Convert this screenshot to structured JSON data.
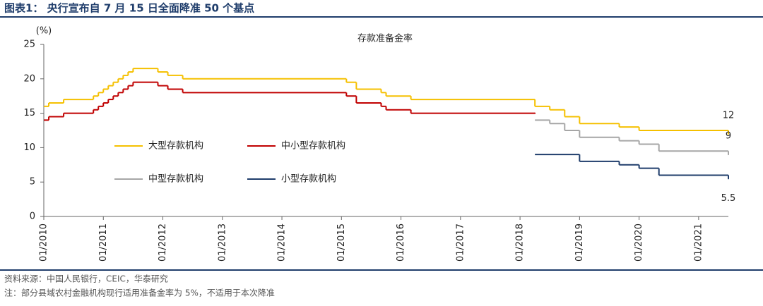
{
  "header": {
    "title": "图表1：  央行宣布自 7 月 15 日全面降准 50 个基点"
  },
  "chart_data": {
    "type": "step-line",
    "title": "存款准备金率",
    "y_label": "(%)",
    "xlim": [
      "01/2010",
      "07/2021"
    ],
    "xticks": [
      "01/2010",
      "01/2011",
      "01/2012",
      "01/2013",
      "01/2014",
      "01/2015",
      "01/2016",
      "01/2017",
      "01/2018",
      "01/2019",
      "01/2020",
      "01/2021"
    ],
    "ylim": [
      0,
      25
    ],
    "yticks": [
      0,
      5,
      10,
      15,
      20,
      25
    ],
    "grid": false,
    "legend": "center-left",
    "series": [
      {
        "name": "大型存款机构",
        "color": "#f5c000",
        "label_last": true,
        "x": [
          "01/2010",
          "02/2010",
          "05/2010",
          "11/2010",
          "12/2010",
          "01/2011",
          "02/2011",
          "03/2011",
          "04/2011",
          "05/2011",
          "06/2011",
          "07/2011",
          "12/2011",
          "02/2012",
          "05/2012",
          "02/2015",
          "04/2015",
          "09/2015",
          "10/2015",
          "03/2016",
          "04/2018",
          "07/2018",
          "10/2018",
          "01/2019",
          "09/2019",
          "01/2020",
          "07/2021"
        ],
        "values": [
          16,
          16.5,
          17,
          17.5,
          18,
          18.5,
          19,
          19.5,
          20,
          20.5,
          21,
          21.5,
          21,
          20.5,
          20,
          19.5,
          18.5,
          18,
          17.5,
          17,
          16,
          15.5,
          14.5,
          13.5,
          13,
          12.5,
          12
        ]
      },
      {
        "name": "中小型存款机构",
        "color": "#c00000",
        "label_last": false,
        "x": [
          "01/2010",
          "02/2010",
          "05/2010",
          "11/2010",
          "12/2010",
          "01/2011",
          "02/2011",
          "03/2011",
          "04/2011",
          "05/2011",
          "06/2011",
          "07/2011",
          "12/2011",
          "02/2012",
          "05/2012",
          "02/2015",
          "04/2015",
          "09/2015",
          "10/2015",
          "03/2016",
          "04/2018"
        ],
        "values": [
          14,
          14.5,
          15,
          15.5,
          16,
          16.5,
          17,
          17.5,
          18,
          18.5,
          19,
          19.5,
          19,
          18.5,
          18,
          17.5,
          16.5,
          16,
          15.5,
          15,
          15
        ]
      },
      {
        "name": "中型存款机构",
        "color": "#a6a6a6",
        "label_last": true,
        "x": [
          "04/2018",
          "07/2018",
          "10/2018",
          "01/2019",
          "09/2019",
          "01/2020",
          "05/2020",
          "07/2021"
        ],
        "values": [
          14,
          13.5,
          12.5,
          11.5,
          11,
          10.5,
          9.5,
          9
        ]
      },
      {
        "name": "小型存款机构",
        "color": "#1f3d6b",
        "label_last": true,
        "x": [
          "04/2018",
          "01/2019",
          "09/2019",
          "01/2020",
          "05/2020",
          "07/2021"
        ],
        "values": [
          9,
          8,
          7.5,
          7,
          6,
          5.5
        ]
      }
    ]
  },
  "footer": {
    "source": "资料来源：中国人民银行，CEIC，华泰研究",
    "note": "注：部分县域农村金融机构现行适用准备金率为 5%，不适用于本次降准"
  }
}
